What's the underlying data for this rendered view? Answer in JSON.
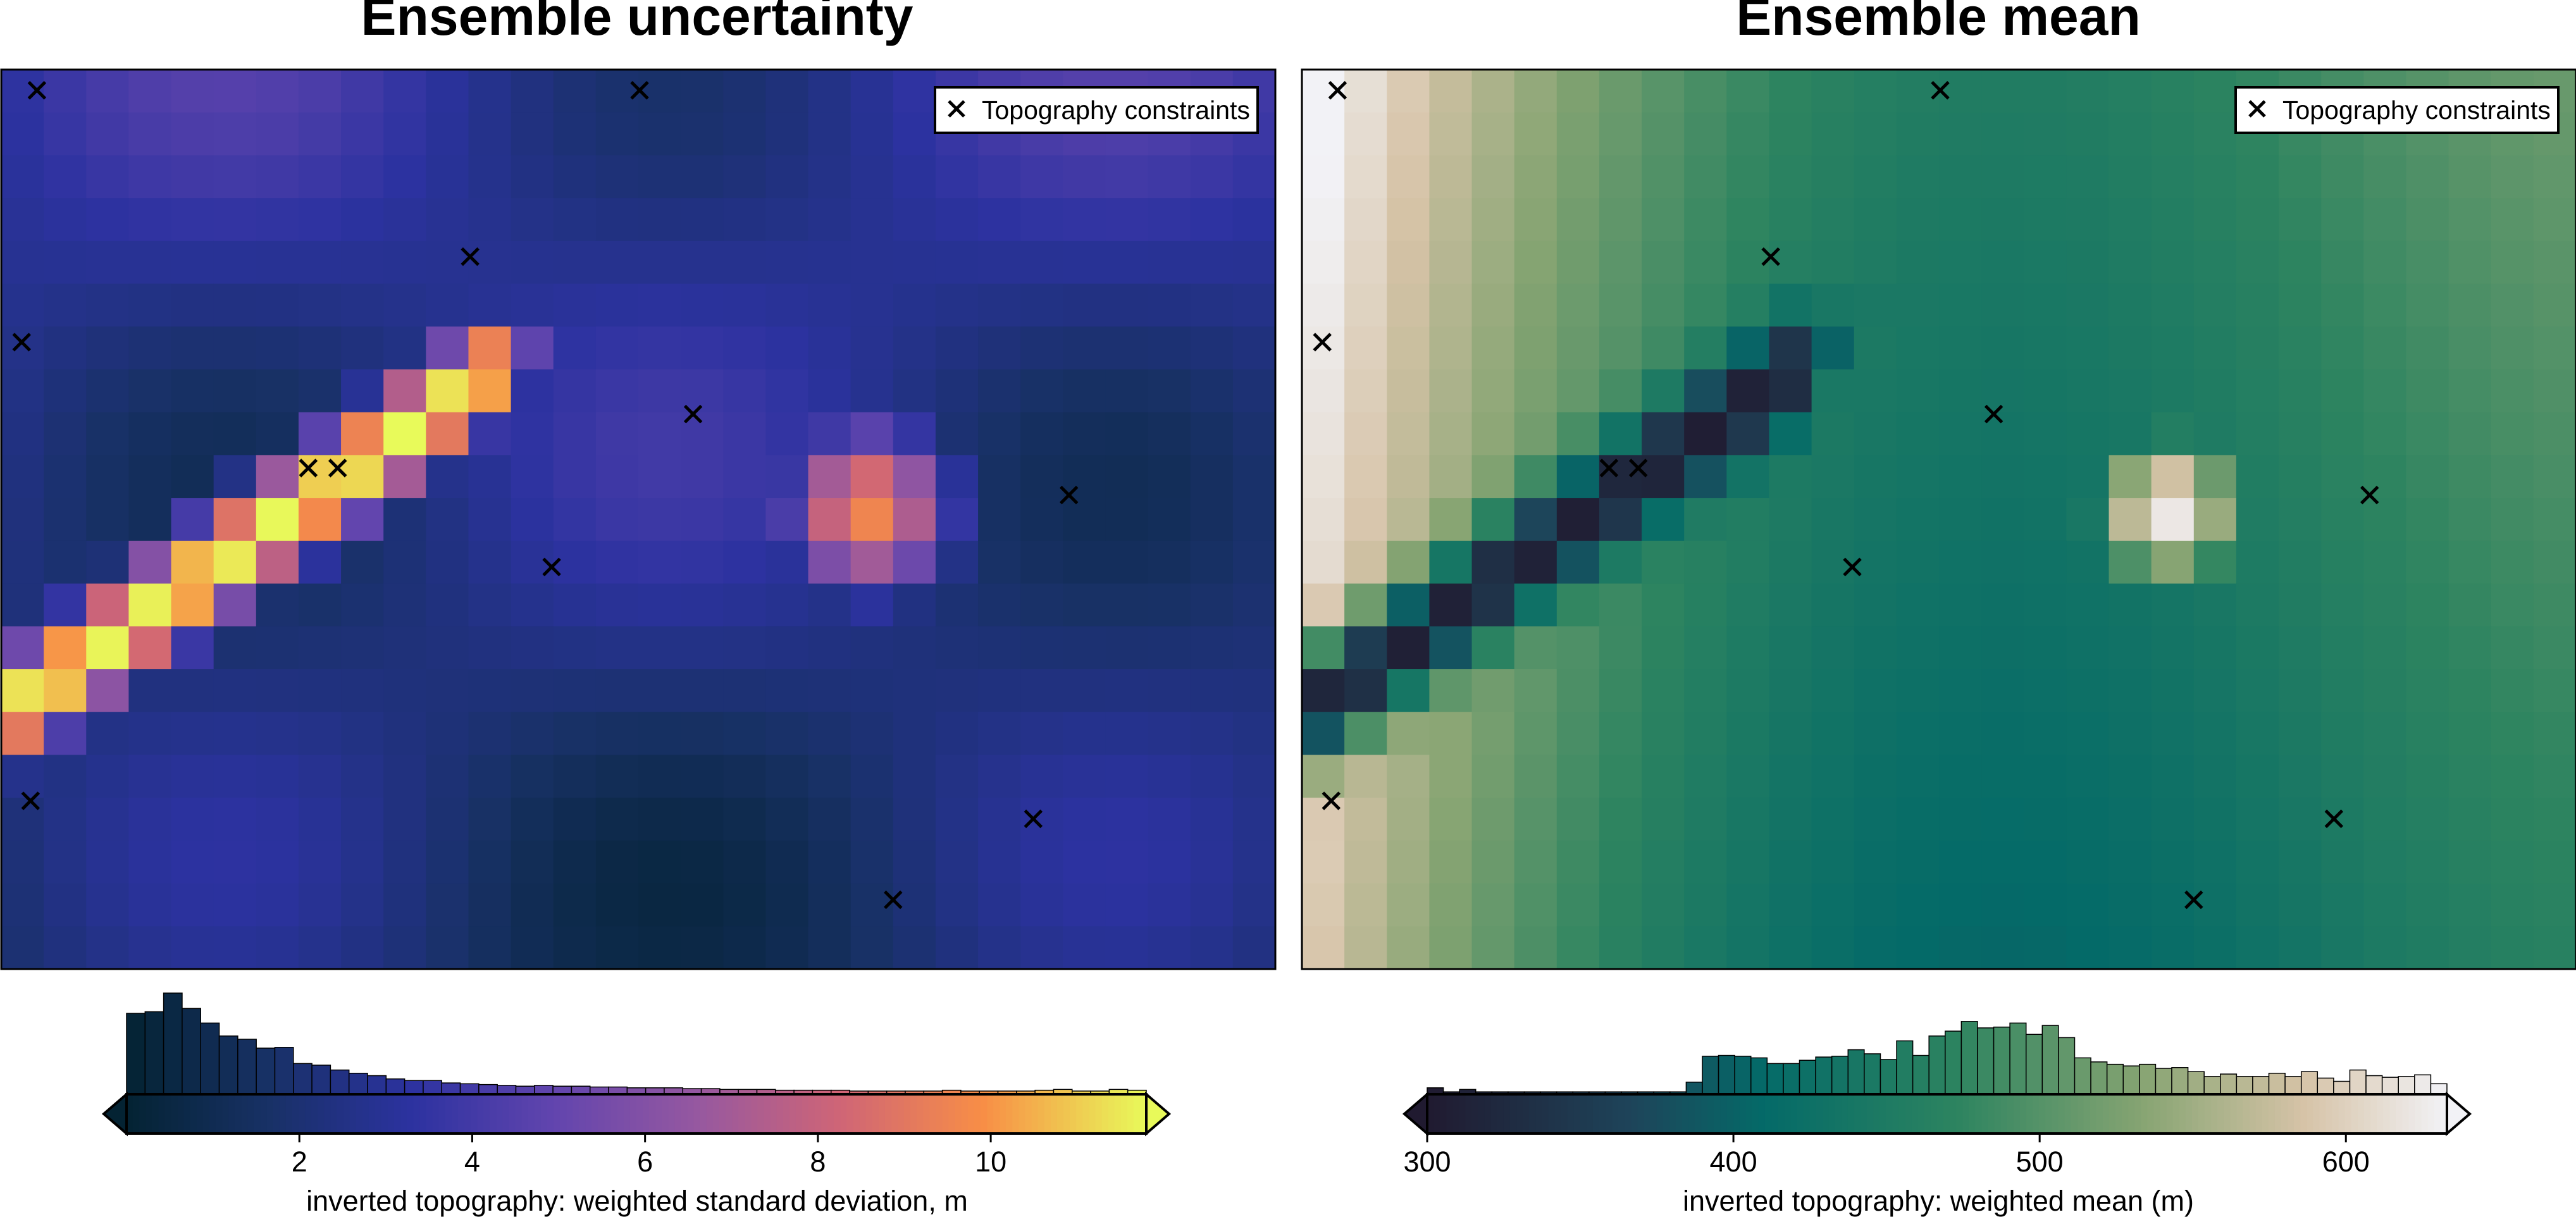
{
  "chart_data": [
    {
      "type": "heatmap",
      "title": "Ensemble uncertainty",
      "legend": {
        "label": "Topography constraints",
        "symbol": "x",
        "position": "top-right"
      },
      "constraints": [
        [
          0.028,
          0.023
        ],
        [
          0.016,
          0.303
        ],
        [
          0.023,
          0.813
        ],
        [
          0.264,
          0.443
        ],
        [
          0.501,
          0.023
        ],
        [
          0.368,
          0.208
        ],
        [
          0.543,
          0.383
        ],
        [
          0.241,
          0.443
        ],
        [
          0.432,
          0.553
        ],
        [
          0.838,
          0.473
        ],
        [
          0.81,
          0.833
        ],
        [
          0.7,
          0.923
        ]
      ],
      "colorbar": {
        "label": "inverted topography: weighted standard deviation, m",
        "cmap": "thermal",
        "range": [
          0,
          11.8
        ],
        "ticks": [
          2,
          4,
          6,
          8,
          10
        ],
        "extend": "both",
        "histogram": [
          1.0,
          1.02,
          1.25,
          1.06,
          0.88,
          0.72,
          0.68,
          0.57,
          0.58,
          0.38,
          0.36,
          0.3,
          0.26,
          0.23,
          0.19,
          0.17,
          0.17,
          0.14,
          0.13,
          0.12,
          0.11,
          0.1,
          0.11,
          0.1,
          0.1,
          0.09,
          0.09,
          0.08,
          0.08,
          0.08,
          0.07,
          0.07,
          0.06,
          0.06,
          0.06,
          0.05,
          0.05,
          0.05,
          0.05,
          0.04,
          0.04,
          0.04,
          0.04,
          0.04,
          0.05,
          0.04,
          0.04,
          0.04,
          0.04,
          0.05,
          0.06,
          0.04,
          0.04,
          0.06,
          0.05
        ]
      }
    },
    {
      "type": "heatmap",
      "title": "Ensemble mean",
      "legend": {
        "label": "Topography constraints",
        "symbol": "x",
        "position": "top-right"
      },
      "constraints": [
        [
          0.028,
          0.023
        ],
        [
          0.016,
          0.303
        ],
        [
          0.023,
          0.813
        ],
        [
          0.264,
          0.443
        ],
        [
          0.501,
          0.023
        ],
        [
          0.368,
          0.208
        ],
        [
          0.543,
          0.383
        ],
        [
          0.241,
          0.443
        ],
        [
          0.432,
          0.553
        ],
        [
          0.838,
          0.473
        ],
        [
          0.81,
          0.833
        ],
        [
          0.7,
          0.923
        ]
      ],
      "colorbar": {
        "label": "inverted topography: weighted mean (m)",
        "cmap": "tarn",
        "range": [
          300,
          633
        ],
        "ticks": [
          300,
          400,
          500,
          600
        ],
        "extend": "both",
        "histogram": [
          0.08,
          0.03,
          0.06,
          0.03,
          0.03,
          0.03,
          0.03,
          0.03,
          0.03,
          0.03,
          0.03,
          0.03,
          0.03,
          0.03,
          0.03,
          0.03,
          0.15,
          0.47,
          0.48,
          0.47,
          0.45,
          0.38,
          0.38,
          0.42,
          0.46,
          0.47,
          0.55,
          0.5,
          0.43,
          0.66,
          0.48,
          0.72,
          0.78,
          0.9,
          0.82,
          0.83,
          0.88,
          0.74,
          0.85,
          0.7,
          0.45,
          0.4,
          0.37,
          0.35,
          0.37,
          0.32,
          0.33,
          0.28,
          0.22,
          0.25,
          0.22,
          0.22,
          0.26,
          0.22,
          0.28,
          0.2,
          0.16,
          0.3,
          0.23,
          0.21,
          0.22,
          0.24,
          0.13
        ]
      }
    }
  ]
}
